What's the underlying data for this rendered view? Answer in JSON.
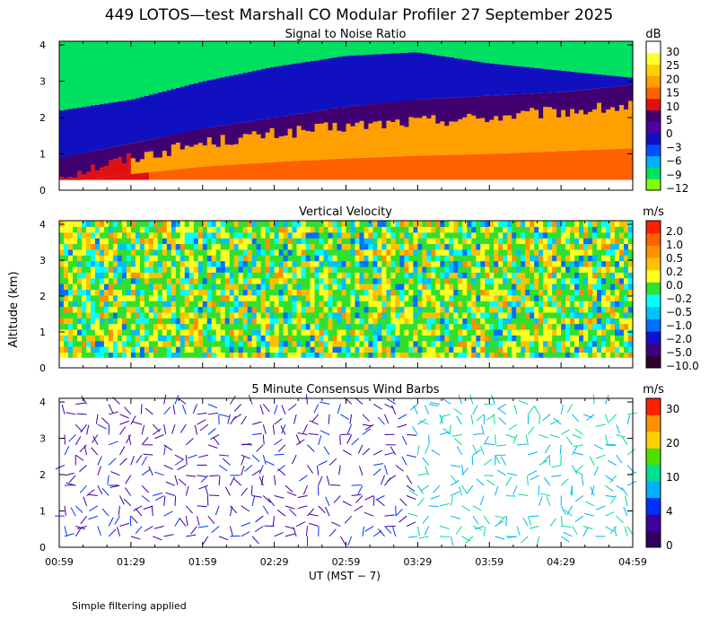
{
  "title": "449 LOTOS—test Marshall CO Modular Profiler 27 September 2025",
  "footnote": "Simple filtering applied",
  "y_axis_label": "Altitude (km)",
  "x_axis_label": "UT  (MST − 7)",
  "x_ticks": [
    "00:59",
    "01:29",
    "01:59",
    "02:29",
    "02:59",
    "03:29",
    "03:59",
    "04:29",
    "04:59"
  ],
  "y_ticks": [
    "0",
    "1",
    "2",
    "3",
    "4"
  ],
  "colors": {
    "snr_scale": [
      "#80ff00",
      "#00e060",
      "#00b0ff",
      "#0050ff",
      "#1010c0",
      "#5000a0",
      "#400070",
      "#e01010",
      "#ff6000",
      "#ffa000",
      "#ffd000",
      "#ffff30",
      "#ffffff"
    ],
    "velocity_scale": [
      "#300030",
      "#400080",
      "#1010d0",
      "#0070ff",
      "#00c0ff",
      "#00ffff",
      "#30e030",
      "#ffff20",
      "#ffc000",
      "#ff9000",
      "#ff6000",
      "#ff2000"
    ],
    "wind_scale": [
      "#300060",
      "#4000a0",
      "#0030ff",
      "#00b0ff",
      "#00e090",
      "#50e000",
      "#ffd000",
      "#ff9000",
      "#ff2000"
    ]
  },
  "chart_data": [
    {
      "type": "heatmap",
      "title": "Signal to Noise Ratio",
      "unit": "dB",
      "colorbar_ticks": [
        "30",
        "25",
        "20",
        "15",
        "10",
        "5",
        "0",
        "−3",
        "−6",
        "−9",
        "−12"
      ],
      "xlim": [
        "00:59",
        "04:59"
      ],
      "ylim": [
        0,
        4.1
      ],
      "approx_boundaries_km": {
        "time": [
          "00:59",
          "01:29",
          "01:59",
          "02:29",
          "02:59",
          "03:29",
          "03:59",
          "04:29",
          "04:59"
        ],
        "strong_echo_top": [
          0.4,
          0.9,
          1.3,
          1.55,
          1.75,
          1.9,
          2.0,
          2.15,
          2.3
        ],
        "inversion_top": [
          0.9,
          1.3,
          1.7,
          2.0,
          2.3,
          2.5,
          2.6,
          2.7,
          2.9
        ],
        "low_snr_top": [
          2.2,
          2.5,
          3.0,
          3.4,
          3.7,
          3.8,
          3.5,
          3.3,
          3.1
        ]
      }
    },
    {
      "type": "heatmap",
      "title": "Vertical Velocity",
      "unit": "m/s",
      "colorbar_ticks": [
        "2.0",
        "1.0",
        "0.5",
        "0.2",
        "0.0",
        "−0.2",
        "−0.5",
        "−1.0",
        "−2.0",
        "−5.0",
        "−10.0"
      ],
      "xlim": [
        "00:59",
        "04:59"
      ],
      "ylim": [
        0,
        4.1
      ]
    },
    {
      "type": "scatter",
      "title": "5 Minute Consensus Wind Barbs",
      "unit": "m/s",
      "colorbar_ticks": [
        "30",
        "20",
        "10",
        "4",
        "0"
      ],
      "xlim": [
        "00:59",
        "04:59"
      ],
      "ylim": [
        0,
        4.1
      ]
    }
  ]
}
